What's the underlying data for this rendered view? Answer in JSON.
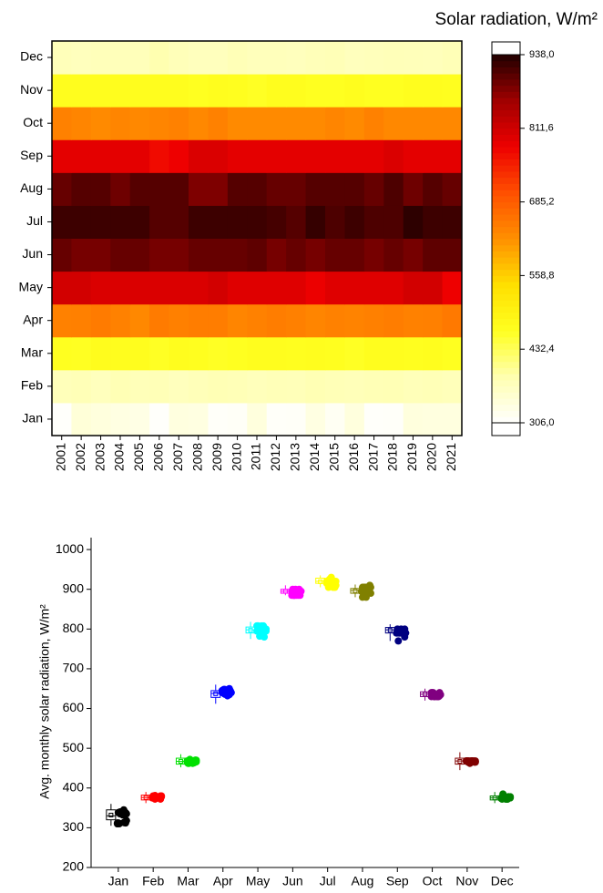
{
  "chart_data": [
    {
      "type": "heatmap",
      "title": "Solar radiation, W/m²",
      "x_categories": [
        "2001",
        "2002",
        "2003",
        "2004",
        "2005",
        "2006",
        "2007",
        "2008",
        "2009",
        "2010",
        "2011",
        "2012",
        "2013",
        "2014",
        "2015",
        "2016",
        "2017",
        "2018",
        "2019",
        "2020",
        "2021"
      ],
      "y_categories": [
        "Jan",
        "Feb",
        "Mar",
        "Apr",
        "May",
        "Jun",
        "Jul",
        "Aug",
        "Sep",
        "Oct",
        "Nov",
        "Dec"
      ],
      "values": [
        [
          310,
          345,
          340,
          335,
          332,
          310,
          338,
          336,
          312,
          314,
          340,
          312,
          313,
          335,
          318,
          340,
          311,
          312,
          340,
          338,
          338
        ],
        [
          375,
          378,
          372,
          380,
          376,
          378,
          372,
          376,
          380,
          378,
          374,
          377,
          376,
          381,
          378,
          376,
          379,
          380,
          376,
          378,
          375
        ],
        [
          465,
          463,
          472,
          470,
          468,
          462,
          470,
          466,
          462,
          464,
          470,
          468,
          467,
          470,
          466,
          462,
          468,
          470,
          466,
          468,
          464
        ],
        [
          640,
          642,
          648,
          640,
          632,
          648,
          642,
          645,
          646,
          635,
          640,
          645,
          642,
          636,
          640,
          638,
          642,
          645,
          640,
          642,
          650
        ],
        [
          808,
          808,
          800,
          800,
          800,
          800,
          800,
          800,
          808,
          795,
          795,
          795,
          795,
          782,
          795,
          795,
          795,
          795,
          808,
          808,
          780
        ],
        [
          895,
          885,
          885,
          895,
          895,
          885,
          885,
          895,
          895,
          895,
          900,
          885,
          895,
          885,
          895,
          895,
          885,
          895,
          885,
          900,
          900
        ],
        [
          920,
          920,
          920,
          920,
          920,
          905,
          905,
          920,
          920,
          920,
          920,
          915,
          905,
          925,
          910,
          920,
          910,
          910,
          930,
          920,
          920
        ],
        [
          895,
          905,
          905,
          890,
          905,
          905,
          905,
          880,
          880,
          905,
          905,
          895,
          895,
          905,
          905,
          905,
          895,
          910,
          890,
          905,
          895
        ],
        [
          790,
          790,
          790,
          790,
          790,
          770,
          780,
          800,
          800,
          790,
          790,
          790,
          790,
          790,
          790,
          790,
          790,
          800,
          790,
          790,
          790
        ],
        [
          640,
          635,
          630,
          635,
          632,
          635,
          640,
          632,
          640,
          630,
          630,
          630,
          630,
          630,
          635,
          630,
          640,
          632,
          632,
          632,
          632
        ],
        [
          468,
          468,
          468,
          468,
          468,
          468,
          468,
          464,
          468,
          466,
          462,
          468,
          468,
          465,
          465,
          468,
          465,
          465,
          468,
          468,
          466
        ],
        [
          375,
          372,
          375,
          375,
          375,
          385,
          376,
          372,
          372,
          378,
          374,
          374,
          372,
          376,
          378,
          372,
          374,
          376,
          375,
          374,
          378
        ]
      ],
      "zlim": [
        306,
        938
      ],
      "colorbar_ticks": [
        {
          "value": 306,
          "label": "306,0"
        },
        {
          "value": 432.4,
          "label": "432,4"
        },
        {
          "value": 558.8,
          "label": "558,8"
        },
        {
          "value": 685.2,
          "label": "685,2"
        },
        {
          "value": 811.6,
          "label": "811,6"
        },
        {
          "value": 938,
          "label": "938,0"
        }
      ],
      "colormap": [
        "#ffffff",
        "#ffffb0",
        "#ffff20",
        "#ffe000",
        "#ff9000",
        "#ff5000",
        "#ee0000",
        "#a00000",
        "#200000"
      ]
    },
    {
      "type": "box",
      "y_label": "Avg. monthly solar radiation, W/m²",
      "categories": [
        "Jan",
        "Feb",
        "Mar",
        "Apr",
        "May",
        "Jun",
        "Jul",
        "Aug",
        "Sep",
        "Oct",
        "Nov",
        "Dec"
      ],
      "colors": [
        "#000000",
        "#ff0000",
        "#00e000",
        "#0000ff",
        "#00ffff",
        "#ff00ff",
        "#ffff00",
        "#808000",
        "#000080",
        "#800080",
        "#800000",
        "#008000"
      ],
      "min": [
        305,
        362,
        452,
        612,
        775,
        885,
        905,
        880,
        770,
        620,
        445,
        362
      ],
      "q1": [
        320,
        370,
        460,
        628,
        790,
        890,
        915,
        890,
        790,
        630,
        460,
        370
      ],
      "median": [
        330,
        376,
        467,
        638,
        798,
        895,
        920,
        897,
        798,
        636,
        468,
        375
      ],
      "q3": [
        345,
        382,
        475,
        645,
        805,
        900,
        928,
        902,
        804,
        642,
        475,
        380
      ],
      "max": [
        360,
        390,
        485,
        660,
        818,
        910,
        935,
        912,
        812,
        650,
        490,
        390
      ],
      "mean": [
        332,
        376,
        467,
        637,
        797,
        895,
        919,
        896,
        797,
        636,
        467,
        375
      ],
      "ylim": [
        200,
        1030
      ],
      "yticks": [
        200,
        300,
        400,
        500,
        600,
        700,
        800,
        900,
        1000
      ]
    }
  ]
}
